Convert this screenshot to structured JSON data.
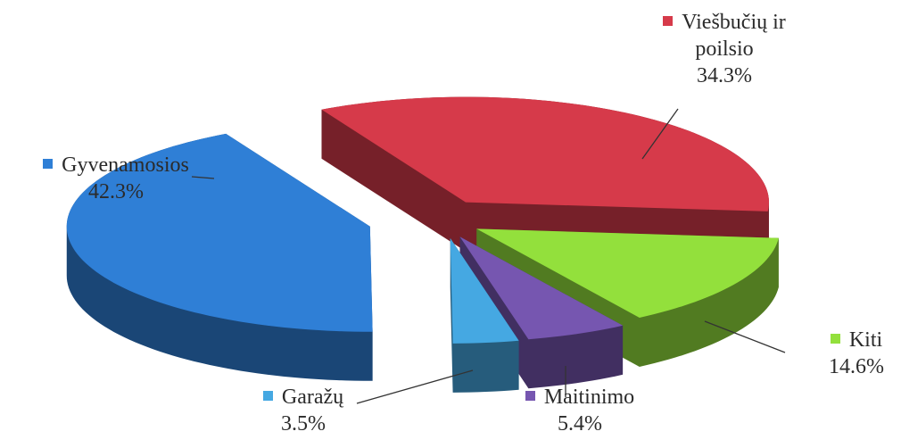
{
  "chart_data": {
    "type": "pie",
    "categories": [
      "Viešbučių ir poilsio",
      "Kiti",
      "Maitinimo",
      "Garažų",
      "Gyvenamosios"
    ],
    "values": [
      34.3,
      14.6,
      5.4,
      3.5,
      42.3
    ],
    "value_labels": [
      "34.3%",
      "14.6%",
      "5.4%",
      "3.5%",
      "42.3%"
    ],
    "colors": [
      "#d63a4a",
      "#93e03c",
      "#7656b0",
      "#45a8e2",
      "#2f7fd6"
    ],
    "legend": "beside-slices"
  }
}
